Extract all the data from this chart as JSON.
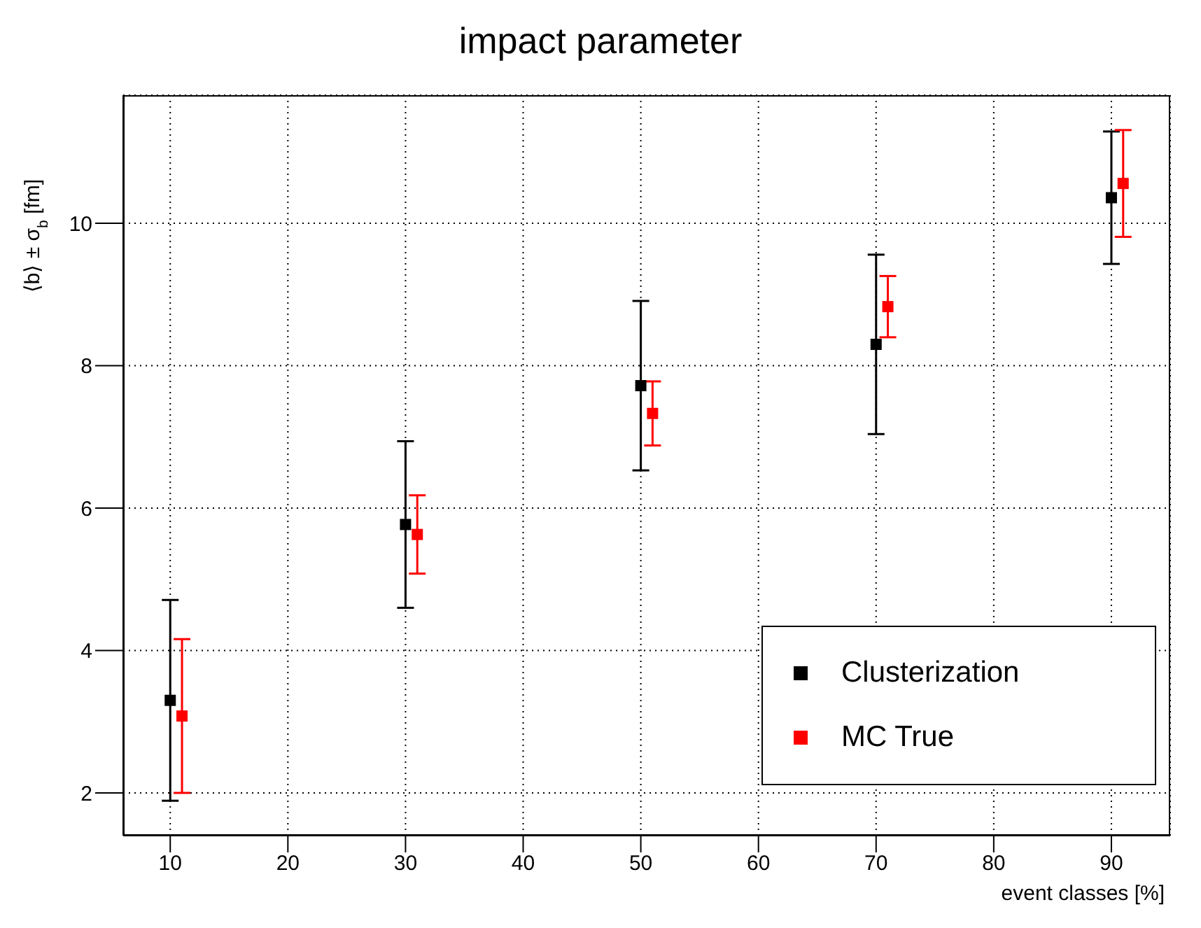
{
  "chart_data": {
    "type": "scatter",
    "title": "impact parameter",
    "xlabel": "event classes [%]",
    "ylabel": "⟨b⟩  ±  σ$_{b}$ [fm]",
    "xlim": [
      6,
      95
    ],
    "xticks": [
      10,
      20,
      30,
      40,
      50,
      60,
      70,
      80,
      90
    ],
    "ylim": [
      1.4,
      11.8
    ],
    "yticks": [
      2,
      4,
      6,
      8,
      10
    ],
    "grid": true,
    "legend": "bottom right",
    "marker": "square",
    "series": [
      {
        "name": "Clusterization",
        "color": "#000000",
        "x": [
          10,
          30,
          50,
          70,
          90
        ],
        "values": [
          3.3,
          5.77,
          7.72,
          8.3,
          10.36
        ],
        "errors": [
          1.41,
          1.17,
          1.19,
          1.26,
          0.93
        ]
      },
      {
        "name": "MC True",
        "color": "#ff0000",
        "x": [
          11,
          31,
          51,
          71,
          91
        ],
        "values": [
          3.08,
          5.63,
          7.33,
          8.83,
          10.56
        ],
        "errors": [
          1.08,
          0.55,
          0.45,
          0.43,
          0.75
        ]
      }
    ]
  }
}
